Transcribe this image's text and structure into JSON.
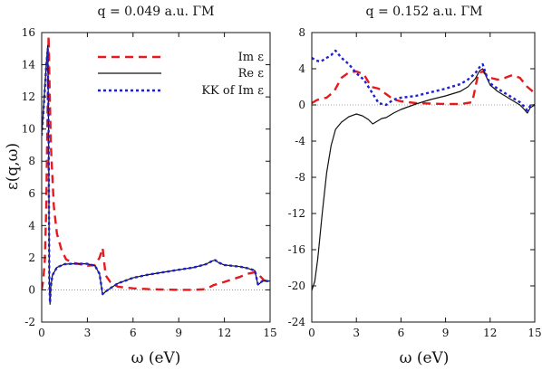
{
  "chart_data": [
    {
      "type": "line",
      "title": "q = 0.049 a.u. ΓM",
      "xlabel": "ω (eV)",
      "ylabel": "ε(q,ω)",
      "xlim": [
        0,
        15
      ],
      "ylim": [
        -2,
        16
      ],
      "x_ticks": [
        0,
        3,
        6,
        9,
        12,
        15
      ],
      "y_ticks": [
        -2,
        0,
        2,
        4,
        6,
        8,
        10,
        12,
        14,
        16
      ],
      "zero_line": true,
      "legend": {
        "placement": "top-right",
        "entries": [
          "Im ε",
          "Re ε",
          "KK of Im ε"
        ]
      },
      "series": [
        {
          "name": "Im ε",
          "color": "#e41a1c",
          "style": "dashed",
          "x": [
            0.0,
            0.1,
            0.2,
            0.3,
            0.4,
            0.45,
            0.5,
            0.6,
            0.8,
            1.0,
            1.3,
            1.6,
            2.0,
            2.5,
            3.0,
            3.5,
            3.8,
            4.0,
            4.2,
            4.5,
            5.0,
            6.0,
            7.0,
            8.0,
            9.0,
            10.0,
            10.8,
            11.3,
            12.0,
            13.0,
            13.5,
            14.0,
            14.3,
            14.6,
            15.0
          ],
          "y": [
            0.0,
            0.6,
            1.8,
            5.0,
            12.0,
            15.8,
            13.5,
            9.0,
            5.2,
            3.5,
            2.5,
            1.9,
            1.7,
            1.6,
            1.5,
            1.55,
            2.0,
            2.6,
            0.9,
            0.5,
            0.2,
            0.1,
            0.05,
            0.02,
            0.0,
            0.0,
            0.05,
            0.3,
            0.5,
            0.8,
            1.0,
            1.1,
            0.9,
            0.6,
            0.5
          ]
        },
        {
          "name": "Re ε",
          "color": "#111111",
          "style": "solid",
          "x": [
            0.0,
            0.1,
            0.2,
            0.3,
            0.4,
            0.45,
            0.5,
            0.55,
            0.6,
            0.7,
            1.0,
            1.5,
            2.0,
            2.5,
            3.0,
            3.5,
            3.8,
            4.0,
            4.2,
            4.5,
            5.0,
            6.0,
            7.0,
            8.0,
            9.0,
            10.0,
            10.8,
            11.2,
            11.4,
            11.6,
            12.0,
            12.5,
            13.0,
            13.5,
            14.0,
            14.2,
            14.5,
            15.0
          ],
          "y": [
            9.7,
            11.0,
            12.5,
            14.0,
            15.2,
            10.0,
            0.5,
            -0.9,
            0.2,
            0.9,
            1.4,
            1.6,
            1.62,
            1.63,
            1.62,
            1.5,
            1.0,
            -0.3,
            -0.1,
            0.1,
            0.4,
            0.75,
            0.95,
            1.1,
            1.25,
            1.4,
            1.6,
            1.8,
            1.85,
            1.7,
            1.55,
            1.5,
            1.45,
            1.35,
            1.2,
            0.3,
            0.55,
            0.55
          ]
        },
        {
          "name": "KK of Im ε",
          "color": "#1f1fd4",
          "style": "dotted",
          "x": [
            0.0,
            0.1,
            0.2,
            0.3,
            0.4,
            0.45,
            0.5,
            0.55,
            0.6,
            0.7,
            1.0,
            1.5,
            2.0,
            2.5,
            3.0,
            3.5,
            3.8,
            4.0,
            4.2,
            4.5,
            5.0,
            6.0,
            7.0,
            8.0,
            9.0,
            10.0,
            10.8,
            11.2,
            11.4,
            11.6,
            12.0,
            12.5,
            13.0,
            13.5,
            14.0,
            14.2,
            14.5,
            15.0
          ],
          "y": [
            9.6,
            10.9,
            12.4,
            13.9,
            15.0,
            9.9,
            0.5,
            -0.8,
            0.2,
            0.9,
            1.4,
            1.6,
            1.62,
            1.63,
            1.62,
            1.5,
            1.0,
            -0.25,
            -0.1,
            0.1,
            0.4,
            0.75,
            0.95,
            1.1,
            1.25,
            1.4,
            1.6,
            1.8,
            1.85,
            1.7,
            1.55,
            1.5,
            1.45,
            1.35,
            1.2,
            0.35,
            0.55,
            0.55
          ]
        }
      ]
    },
    {
      "type": "line",
      "title": "q = 0.152 a.u. ΓM",
      "xlabel": "ω (eV)",
      "ylabel": "",
      "xlim": [
        0,
        15
      ],
      "ylim": [
        -24,
        8
      ],
      "x_ticks": [
        0,
        3,
        6,
        9,
        12,
        15
      ],
      "y_ticks": [
        -24,
        -20,
        -16,
        -12,
        -8,
        -4,
        0,
        4,
        8
      ],
      "zero_line": true,
      "series": [
        {
          "name": "Im ε",
          "color": "#e41a1c",
          "style": "dashed",
          "x": [
            0.0,
            0.3,
            0.6,
            1.0,
            1.5,
            2.0,
            2.5,
            3.0,
            3.5,
            4.0,
            4.5,
            5.0,
            5.5,
            6.0,
            7.0,
            8.0,
            9.0,
            10.0,
            10.8,
            11.2,
            11.5,
            12.0,
            12.5,
            13.0,
            13.5,
            14.0,
            14.5,
            15.0
          ],
          "y": [
            0.2,
            0.5,
            0.7,
            0.8,
            1.5,
            3.0,
            3.6,
            3.7,
            3.4,
            2.0,
            1.8,
            1.2,
            0.6,
            0.4,
            0.2,
            0.15,
            0.1,
            0.1,
            0.3,
            3.5,
            3.7,
            3.0,
            2.8,
            3.0,
            3.3,
            3.0,
            2.0,
            1.3
          ]
        },
        {
          "name": "Re ε",
          "color": "#111111",
          "style": "solid",
          "x": [
            0.0,
            0.2,
            0.4,
            0.7,
            1.0,
            1.3,
            1.6,
            2.0,
            2.5,
            3.0,
            3.4,
            3.8,
            4.1,
            4.4,
            4.7,
            5.0,
            5.5,
            6.0,
            7.0,
            8.0,
            9.0,
            10.0,
            10.5,
            11.0,
            11.3,
            11.5,
            11.8,
            12.0,
            12.5,
            13.0,
            13.5,
            14.0,
            14.3,
            14.5,
            14.7,
            15.0
          ],
          "y": [
            -20.5,
            -19.5,
            -17.0,
            -12.0,
            -7.5,
            -4.5,
            -2.7,
            -1.9,
            -1.3,
            -1.0,
            -1.2,
            -1.6,
            -2.1,
            -1.8,
            -1.5,
            -1.4,
            -0.9,
            -0.5,
            0.1,
            0.6,
            1.0,
            1.5,
            2.0,
            2.9,
            3.8,
            4.0,
            2.9,
            2.2,
            1.5,
            1.0,
            0.5,
            0.0,
            -0.5,
            -0.9,
            -0.3,
            0.0
          ]
        },
        {
          "name": "KK of Im ε",
          "color": "#1f1fd4",
          "style": "dotted",
          "x": [
            0.0,
            0.3,
            0.6,
            1.0,
            1.3,
            1.6,
            2.0,
            2.5,
            3.0,
            3.5,
            4.0,
            4.5,
            5.0,
            5.5,
            6.0,
            7.0,
            8.0,
            9.0,
            10.0,
            10.5,
            11.0,
            11.3,
            11.5,
            11.8,
            12.0,
            12.5,
            13.0,
            13.5,
            14.0,
            14.3,
            14.5,
            14.7,
            15.0
          ],
          "y": [
            5.2,
            4.9,
            4.8,
            5.2,
            5.5,
            6.0,
            5.2,
            4.5,
            3.5,
            2.8,
            1.5,
            0.2,
            0.0,
            0.6,
            0.8,
            1.0,
            1.4,
            1.8,
            2.3,
            2.8,
            3.5,
            4.2,
            4.5,
            3.0,
            2.4,
            1.8,
            1.3,
            0.8,
            0.3,
            -0.2,
            -0.6,
            -0.1,
            0.0
          ]
        }
      ]
    }
  ]
}
